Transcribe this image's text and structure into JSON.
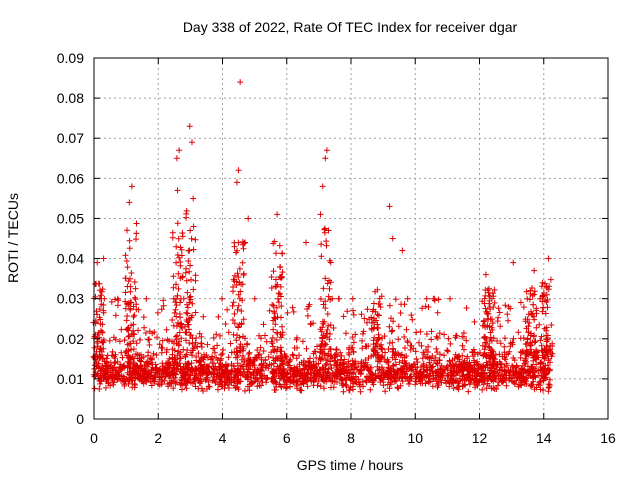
{
  "chart_data": {
    "type": "scatter",
    "title": "Day 338 of 2022, Rate Of TEC Index for receiver dgar",
    "xlabel": "GPS time / hours",
    "ylabel": "ROTI / TECUs",
    "xlim": [
      0,
      16
    ],
    "ylim": [
      0,
      0.09
    ],
    "xticks": [
      0,
      2,
      4,
      6,
      8,
      10,
      12,
      14,
      16
    ],
    "xtick_labels": [
      "0",
      "2",
      "4",
      "6",
      "8",
      "10",
      "12",
      "14",
      "16"
    ],
    "yticks": [
      0,
      0.01,
      0.02,
      0.03,
      0.04,
      0.05,
      0.06,
      0.07,
      0.08,
      0.09
    ],
    "ytick_labels": [
      "0",
      "0.01",
      "0.02",
      "0.03",
      "0.04",
      "0.05",
      "0.06",
      "0.07",
      "0.08",
      "0.09"
    ],
    "grid": true,
    "marker": "+",
    "color": "#e00000",
    "data_extent_hours": [
      0,
      14.2
    ],
    "outliers": [
      {
        "x": 4.55,
        "y": 0.084
      },
      {
        "x": 2.98,
        "y": 0.073
      },
      {
        "x": 3.05,
        "y": 0.069
      },
      {
        "x": 2.65,
        "y": 0.067
      },
      {
        "x": 7.25,
        "y": 0.067
      },
      {
        "x": 2.58,
        "y": 0.065
      },
      {
        "x": 7.2,
        "y": 0.065
      },
      {
        "x": 4.5,
        "y": 0.062
      },
      {
        "x": 4.45,
        "y": 0.059
      },
      {
        "x": 1.18,
        "y": 0.058
      },
      {
        "x": 7.12,
        "y": 0.058
      },
      {
        "x": 2.6,
        "y": 0.057
      },
      {
        "x": 1.1,
        "y": 0.054
      },
      {
        "x": 9.2,
        "y": 0.053
      },
      {
        "x": 5.7,
        "y": 0.051
      },
      {
        "x": 7.05,
        "y": 0.051
      },
      {
        "x": 4.8,
        "y": 0.05
      },
      {
        "x": 3.1,
        "y": 0.048
      },
      {
        "x": 7.3,
        "y": 0.047
      },
      {
        "x": 9.3,
        "y": 0.045
      },
      {
        "x": 4.7,
        "y": 0.044
      },
      {
        "x": 6.6,
        "y": 0.044
      },
      {
        "x": 9.6,
        "y": 0.042
      },
      {
        "x": 0.3,
        "y": 0.04
      },
      {
        "x": 14.15,
        "y": 0.04
      },
      {
        "x": 0.1,
        "y": 0.039
      },
      {
        "x": 13.7,
        "y": 0.037
      },
      {
        "x": 13.05,
        "y": 0.039
      },
      {
        "x": 12.2,
        "y": 0.036
      }
    ],
    "bursts": [
      {
        "x": 0.15,
        "y": 0.034
      },
      {
        "x": 1.15,
        "y": 0.049
      },
      {
        "x": 2.6,
        "y": 0.05
      },
      {
        "x": 3.0,
        "y": 0.055
      },
      {
        "x": 4.5,
        "y": 0.045
      },
      {
        "x": 5.7,
        "y": 0.045
      },
      {
        "x": 7.2,
        "y": 0.048
      },
      {
        "x": 8.8,
        "y": 0.033
      },
      {
        "x": 12.3,
        "y": 0.033
      },
      {
        "x": 13.6,
        "y": 0.034
      },
      {
        "x": 14.1,
        "y": 0.035
      }
    ]
  }
}
